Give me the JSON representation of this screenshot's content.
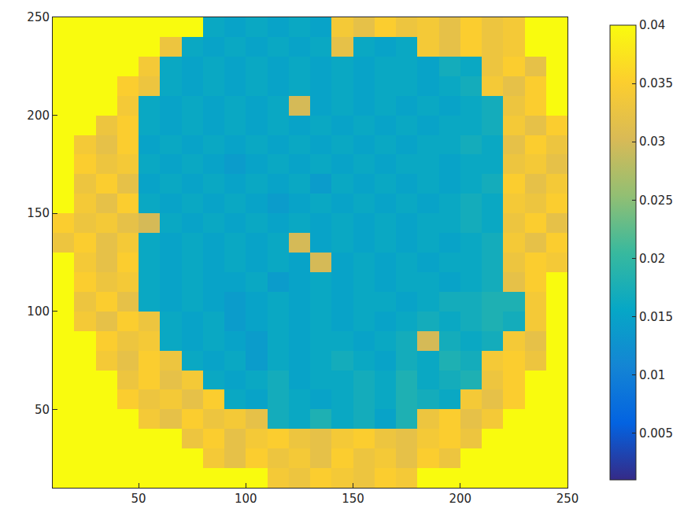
{
  "chart_data": {
    "type": "heatmap",
    "x": [
      15,
      25,
      35,
      45,
      55,
      65,
      75,
      85,
      95,
      105,
      115,
      125,
      135,
      145,
      155,
      165,
      175,
      185,
      195,
      205,
      215,
      225,
      235,
      245
    ],
    "y": [
      15,
      25,
      35,
      45,
      55,
      65,
      75,
      85,
      95,
      105,
      115,
      125,
      135,
      145,
      155,
      165,
      175,
      185,
      195,
      205,
      215,
      225,
      235,
      245
    ],
    "z": [
      [
        0.04,
        0.04,
        0.04,
        0.04,
        0.04,
        0.04,
        0.04,
        0.04,
        0.04,
        0.04,
        0.034,
        0.033,
        0.035,
        0.034,
        0.033,
        0.035,
        0.034,
        0.04,
        0.04,
        0.04,
        0.04,
        0.04,
        0.04,
        0.04
      ],
      [
        0.04,
        0.04,
        0.04,
        0.04,
        0.04,
        0.04,
        0.04,
        0.034,
        0.032,
        0.035,
        0.033,
        0.034,
        0.032,
        0.035,
        0.033,
        0.034,
        0.032,
        0.035,
        0.033,
        0.04,
        0.04,
        0.04,
        0.04,
        0.04
      ],
      [
        0.04,
        0.04,
        0.04,
        0.04,
        0.04,
        0.04,
        0.033,
        0.035,
        0.032,
        0.034,
        0.035,
        0.033,
        0.032,
        0.034,
        0.035,
        0.033,
        0.032,
        0.034,
        0.035,
        0.033,
        0.04,
        0.04,
        0.04,
        0.04
      ],
      [
        0.04,
        0.04,
        0.04,
        0.04,
        0.034,
        0.032,
        0.035,
        0.033,
        0.034,
        0.032,
        0.017,
        0.016,
        0.018,
        0.016,
        0.017,
        0.015,
        0.018,
        0.033,
        0.035,
        0.032,
        0.034,
        0.04,
        0.04,
        0.04
      ],
      [
        0.04,
        0.04,
        0.04,
        0.035,
        0.033,
        0.034,
        0.032,
        0.035,
        0.016,
        0.015,
        0.017,
        0.016,
        0.015,
        0.016,
        0.017,
        0.016,
        0.018,
        0.017,
        0.016,
        0.034,
        0.032,
        0.035,
        0.04,
        0.04
      ],
      [
        0.04,
        0.04,
        0.04,
        0.033,
        0.035,
        0.032,
        0.034,
        0.016,
        0.015,
        0.016,
        0.017,
        0.015,
        0.016,
        0.016,
        0.017,
        0.016,
        0.018,
        0.016,
        0.017,
        0.018,
        0.033,
        0.035,
        0.04,
        0.04
      ],
      [
        0.04,
        0.04,
        0.034,
        0.032,
        0.035,
        0.033,
        0.016,
        0.015,
        0.016,
        0.014,
        0.016,
        0.015,
        0.016,
        0.017,
        0.016,
        0.015,
        0.017,
        0.016,
        0.018,
        0.017,
        0.034,
        0.035,
        0.033,
        0.04
      ],
      [
        0.04,
        0.04,
        0.035,
        0.033,
        0.034,
        0.016,
        0.015,
        0.016,
        0.015,
        0.014,
        0.016,
        0.015,
        0.016,
        0.016,
        0.015,
        0.016,
        0.017,
        0.03,
        0.017,
        0.016,
        0.017,
        0.034,
        0.032,
        0.04
      ],
      [
        0.04,
        0.034,
        0.032,
        0.035,
        0.033,
        0.016,
        0.015,
        0.016,
        0.014,
        0.015,
        0.016,
        0.015,
        0.016,
        0.015,
        0.016,
        0.015,
        0.016,
        0.017,
        0.016,
        0.017,
        0.018,
        0.017,
        0.034,
        0.04
      ],
      [
        0.04,
        0.033,
        0.035,
        0.032,
        0.016,
        0.015,
        0.016,
        0.015,
        0.014,
        0.015,
        0.016,
        0.015,
        0.016,
        0.015,
        0.016,
        0.016,
        0.015,
        0.016,
        0.017,
        0.017,
        0.018,
        0.018,
        0.034,
        0.04
      ],
      [
        0.04,
        0.035,
        0.033,
        0.034,
        0.016,
        0.015,
        0.016,
        0.015,
        0.015,
        0.016,
        0.014,
        0.015,
        0.016,
        0.015,
        0.016,
        0.015,
        0.016,
        0.016,
        0.015,
        0.016,
        0.017,
        0.032,
        0.035,
        0.04
      ],
      [
        0.04,
        0.034,
        0.032,
        0.035,
        0.016,
        0.015,
        0.016,
        0.015,
        0.016,
        0.015,
        0.016,
        0.015,
        0.03,
        0.015,
        0.016,
        0.015,
        0.016,
        0.015,
        0.016,
        0.016,
        0.017,
        0.033,
        0.035,
        0.034
      ],
      [
        0.033,
        0.035,
        0.032,
        0.034,
        0.016,
        0.015,
        0.016,
        0.015,
        0.016,
        0.015,
        0.016,
        0.03,
        0.015,
        0.016,
        0.015,
        0.016,
        0.015,
        0.016,
        0.015,
        0.016,
        0.017,
        0.034,
        0.032,
        0.035
      ],
      [
        0.035,
        0.033,
        0.034,
        0.032,
        0.03,
        0.016,
        0.015,
        0.016,
        0.015,
        0.016,
        0.015,
        0.016,
        0.015,
        0.016,
        0.015,
        0.016,
        0.015,
        0.016,
        0.016,
        0.017,
        0.016,
        0.033,
        0.035,
        0.032
      ],
      [
        0.04,
        0.034,
        0.032,
        0.035,
        0.016,
        0.015,
        0.016,
        0.015,
        0.016,
        0.015,
        0.014,
        0.015,
        0.016,
        0.015,
        0.016,
        0.015,
        0.016,
        0.015,
        0.016,
        0.017,
        0.016,
        0.034,
        0.033,
        0.035
      ],
      [
        0.04,
        0.033,
        0.035,
        0.032,
        0.015,
        0.016,
        0.015,
        0.016,
        0.015,
        0.016,
        0.015,
        0.016,
        0.014,
        0.016,
        0.015,
        0.016,
        0.015,
        0.016,
        0.015,
        0.016,
        0.017,
        0.035,
        0.032,
        0.034
      ],
      [
        0.04,
        0.035,
        0.033,
        0.034,
        0.016,
        0.015,
        0.016,
        0.015,
        0.014,
        0.015,
        0.016,
        0.015,
        0.016,
        0.015,
        0.016,
        0.015,
        0.016,
        0.016,
        0.015,
        0.016,
        0.016,
        0.033,
        0.034,
        0.032
      ],
      [
        0.04,
        0.034,
        0.032,
        0.035,
        0.015,
        0.016,
        0.015,
        0.016,
        0.015,
        0.016,
        0.015,
        0.016,
        0.015,
        0.016,
        0.015,
        0.016,
        0.015,
        0.016,
        0.016,
        0.017,
        0.016,
        0.032,
        0.035,
        0.033
      ],
      [
        0.04,
        0.04,
        0.033,
        0.035,
        0.016,
        0.015,
        0.016,
        0.015,
        0.016,
        0.015,
        0.016,
        0.015,
        0.016,
        0.015,
        0.016,
        0.015,
        0.016,
        0.015,
        0.016,
        0.016,
        0.017,
        0.034,
        0.032,
        0.035
      ],
      [
        0.04,
        0.04,
        0.04,
        0.034,
        0.016,
        0.015,
        0.016,
        0.015,
        0.016,
        0.015,
        0.016,
        0.03,
        0.015,
        0.016,
        0.015,
        0.016,
        0.015,
        0.016,
        0.015,
        0.016,
        0.017,
        0.033,
        0.035,
        0.04
      ],
      [
        0.04,
        0.04,
        0.04,
        0.035,
        0.033,
        0.016,
        0.015,
        0.016,
        0.015,
        0.016,
        0.015,
        0.016,
        0.015,
        0.016,
        0.015,
        0.016,
        0.016,
        0.015,
        0.016,
        0.017,
        0.034,
        0.032,
        0.035,
        0.04
      ],
      [
        0.04,
        0.04,
        0.04,
        0.04,
        0.034,
        0.016,
        0.015,
        0.016,
        0.015,
        0.016,
        0.015,
        0.016,
        0.015,
        0.016,
        0.015,
        0.016,
        0.016,
        0.015,
        0.017,
        0.016,
        0.033,
        0.035,
        0.032,
        0.04
      ],
      [
        0.04,
        0.04,
        0.04,
        0.04,
        0.04,
        0.033,
        0.016,
        0.015,
        0.016,
        0.015,
        0.016,
        0.015,
        0.016,
        0.032,
        0.016,
        0.015,
        0.016,
        0.034,
        0.032,
        0.035,
        0.033,
        0.034,
        0.04,
        0.04
      ],
      [
        0.04,
        0.04,
        0.04,
        0.04,
        0.04,
        0.04,
        0.04,
        0.016,
        0.015,
        0.016,
        0.015,
        0.016,
        0.015,
        0.034,
        0.032,
        0.035,
        0.033,
        0.034,
        0.032,
        0.035,
        0.033,
        0.034,
        0.04,
        0.04
      ]
    ],
    "xlim": [
      10,
      250
    ],
    "ylim": [
      10,
      250
    ],
    "xticks": [
      50,
      100,
      150,
      200,
      250
    ],
    "yticks": [
      50,
      100,
      150,
      200,
      250
    ],
    "colorbar_range": [
      0.001,
      0.04
    ],
    "colorbar_ticks": [
      0.005,
      0.01,
      0.015,
      0.02,
      0.025,
      0.03,
      0.035,
      0.04
    ]
  }
}
